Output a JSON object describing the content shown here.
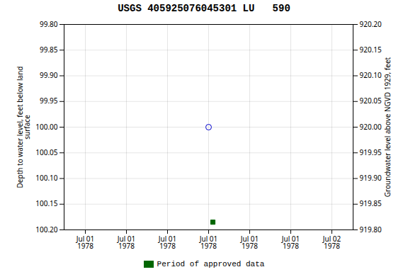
{
  "chart_data": {
    "type": "scatter",
    "title": "USGS 405925076045301 LU   590",
    "ylabel": "Depth to water level, feet below land\nsurface",
    "y2label": "Groundwater level above NGVD 1929, feet",
    "categories": [
      "Jul 01\n1978",
      "Jul 01\n1978",
      "Jul 01\n1978",
      "Jul 01\n1978",
      "Jul 01\n1978",
      "Jul 01\n1978",
      "Jul 02\n1978"
    ],
    "series": [
      {
        "color": "#0000cc",
        "marker": "open_circle",
        "values": [
          null,
          null,
          null,
          100.0,
          null,
          null,
          null
        ]
      },
      {
        "name": "Period of approved data",
        "color": "#006600",
        "marker": "square",
        "values": [
          null,
          null,
          null,
          100.185,
          null,
          null,
          null
        ]
      }
    ],
    "ylim": [
      100.2,
      99.8
    ],
    "yticks": [
      {
        "value": 99.8,
        "label": "99.80"
      },
      99.85,
      {
        "value": 99.9,
        "label": "99.90"
      },
      99.95,
      {
        "value": 100.0,
        "label": "100.00"
      },
      100.05,
      {
        "value": 100.1,
        "label": "100.10"
      },
      100.15,
      {
        "value": 100.2,
        "label": "100.20"
      }
    ],
    "y2lim": [
      919.8,
      920.2
    ],
    "y2ticks": [
      {
        "value": 920.2,
        "label": "920.20"
      },
      920.15,
      {
        "value": 920.1,
        "label": "920.10"
      },
      920.05,
      {
        "value": 920.0,
        "label": "920.00"
      },
      919.95,
      {
        "value": 919.9,
        "label": "919.90"
      },
      919.85,
      {
        "value": 919.8,
        "label": "919.80"
      }
    ],
    "grid": true,
    "legend": "bottom"
  }
}
